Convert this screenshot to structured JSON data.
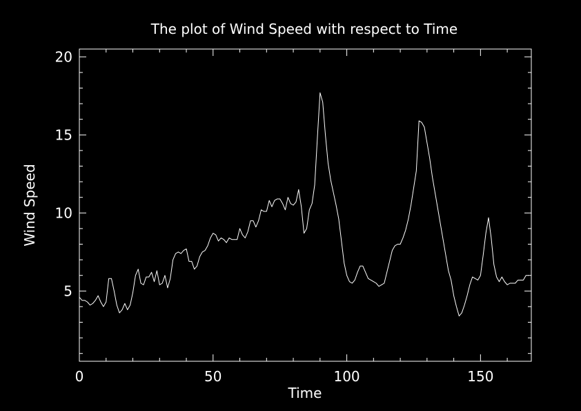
{
  "chart_data": {
    "type": "line",
    "title": "The plot of Wind Speed with respect to Time",
    "xlabel": "Time",
    "ylabel": "Wind Speed",
    "xlim": [
      0,
      169
    ],
    "ylim": [
      0.5,
      20.5
    ],
    "xticks": [
      0,
      50,
      100,
      150
    ],
    "yticks": [
      5,
      10,
      15,
      20
    ],
    "grid": false,
    "colors": {
      "background": "#000000",
      "foreground": "#ffffff"
    },
    "series": [
      {
        "x": [
          0,
          1,
          2,
          3,
          4,
          5,
          6,
          7,
          8,
          9,
          10,
          11,
          12,
          13,
          14,
          15,
          16,
          17,
          18,
          19,
          20,
          21,
          22,
          23,
          24,
          25,
          26,
          27,
          28,
          29,
          30,
          31,
          32,
          33,
          34,
          35,
          36,
          37,
          38,
          39,
          40,
          41,
          42,
          43,
          44,
          45,
          46,
          47,
          48,
          49,
          50,
          51,
          52,
          53,
          54,
          55,
          56,
          57,
          58,
          59,
          60,
          61,
          62,
          63,
          64,
          65,
          66,
          67,
          68,
          69,
          70,
          71,
          72,
          73,
          74,
          75,
          76,
          77,
          78,
          79,
          80,
          81,
          82,
          83,
          84,
          85,
          86,
          87,
          88,
          89,
          90,
          91,
          92,
          93,
          94,
          95,
          96,
          97,
          98,
          99,
          100,
          101,
          102,
          103,
          104,
          105,
          106,
          107,
          108,
          109,
          110,
          111,
          112,
          113,
          114,
          115,
          116,
          117,
          118,
          119,
          120,
          121,
          122,
          123,
          124,
          125,
          126,
          127,
          128,
          129,
          130,
          131,
          132,
          133,
          134,
          135,
          136,
          137,
          138,
          139,
          140,
          141,
          142,
          143,
          144,
          145,
          146,
          147,
          148,
          149,
          150,
          151,
          152,
          153,
          154,
          155,
          156,
          157,
          158,
          159,
          160,
          161,
          162,
          163,
          164,
          165,
          166,
          167,
          168
        ],
        "values": [
          4.6,
          4.4,
          4.4,
          4.3,
          4.1,
          4.2,
          4.4,
          4.7,
          4.3,
          4.0,
          4.3,
          5.8,
          5.8,
          5.0,
          4.1,
          3.6,
          3.8,
          4.2,
          3.8,
          4.1,
          4.9,
          6.0,
          6.4,
          5.5,
          5.4,
          5.9,
          5.9,
          6.2,
          5.6,
          6.3,
          5.4,
          5.5,
          6.0,
          5.2,
          5.8,
          7.0,
          7.4,
          7.5,
          7.4,
          7.6,
          7.7,
          6.9,
          6.9,
          6.4,
          6.6,
          7.2,
          7.5,
          7.6,
          7.9,
          8.4,
          8.7,
          8.6,
          8.2,
          8.4,
          8.3,
          8.1,
          8.4,
          8.3,
          8.3,
          8.3,
          9.0,
          8.6,
          8.4,
          8.8,
          9.5,
          9.5,
          9.1,
          9.5,
          10.2,
          10.1,
          10.1,
          10.8,
          10.4,
          10.8,
          10.9,
          10.9,
          10.6,
          10.2,
          11.0,
          10.6,
          10.5,
          10.7,
          11.5,
          10.4,
          8.7,
          9.0,
          10.2,
          10.6,
          11.8,
          14.8,
          17.7,
          17.1,
          15.0,
          13.2,
          12.1,
          11.3,
          10.5,
          9.6,
          8.2,
          6.8,
          6.0,
          5.6,
          5.5,
          5.7,
          6.2,
          6.6,
          6.6,
          6.2,
          5.8,
          5.7,
          5.6,
          5.5,
          5.3,
          5.4,
          5.5,
          6.2,
          6.9,
          7.6,
          7.9,
          8.0,
          8.0,
          8.4,
          8.9,
          9.6,
          10.5,
          11.6,
          12.7,
          15.9,
          15.8,
          15.5,
          14.5,
          13.5,
          12.3,
          11.3,
          10.3,
          9.3,
          8.3,
          7.3,
          6.3,
          5.7,
          4.7,
          4.0,
          3.4,
          3.6,
          4.1,
          4.7,
          5.4,
          5.9,
          5.8,
          5.7,
          6.0,
          7.3,
          8.7,
          9.7,
          8.4,
          6.7,
          5.9,
          5.6,
          5.9,
          5.6,
          5.4,
          5.5,
          5.5,
          5.5,
          5.7,
          5.7,
          5.7,
          6.0,
          6.0
        ]
      }
    ]
  }
}
